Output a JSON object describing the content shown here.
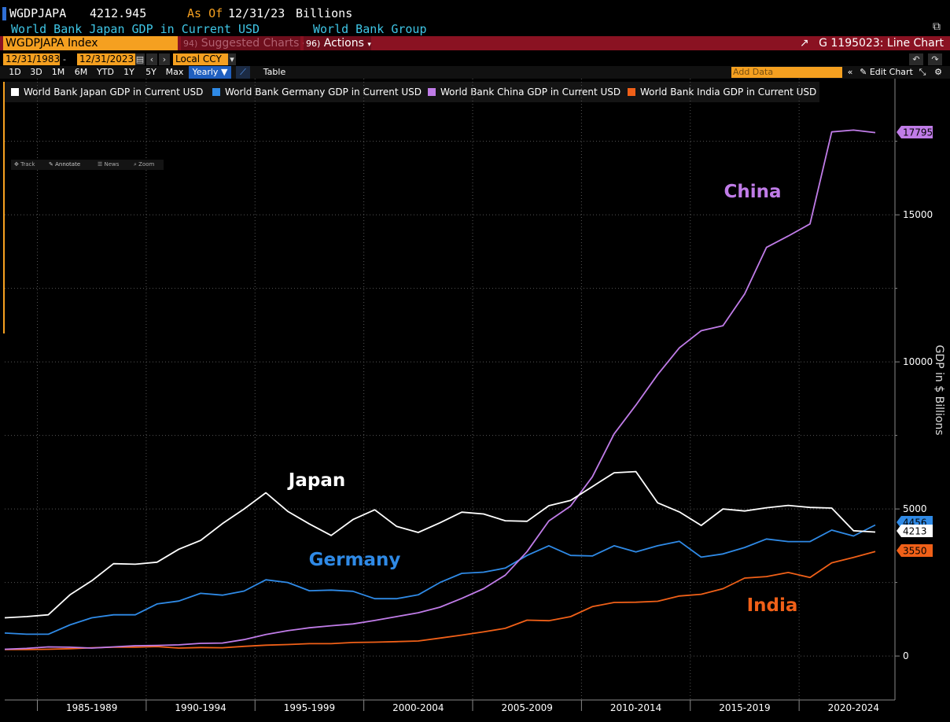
{
  "header": {
    "ticker": "WGDPJAPA",
    "last_value": "4212.945",
    "as_of_label": "As Of",
    "as_of_date": "12/31/23",
    "units": "Billions",
    "description": "World Bank Japan GDP in Current USD",
    "source": "World Bank Group"
  },
  "toolbar": {
    "security": "WGDPJAPA Index",
    "suggested": "Suggested Charts",
    "suggested_prefix": "94)",
    "actions": "Actions",
    "actions_prefix": "96)",
    "chart_id": "G 1195023: Line Chart"
  },
  "range": {
    "start": "12/31/1983",
    "end": "12/31/2023",
    "currency": "Local CCY"
  },
  "periods": [
    "1D",
    "3D",
    "1M",
    "6M",
    "YTD",
    "1Y",
    "5Y",
    "Max"
  ],
  "frequency": "Yearly",
  "table_label": "Table",
  "add_data_placeholder": "Add Data",
  "edit_chart": "Edit Chart",
  "chart_tools": [
    "Track",
    "Annotate",
    "News",
    "Zoom"
  ],
  "colors": {
    "japan": "#ffffff",
    "germany": "#2f8ae6",
    "china": "#c07ce8",
    "india": "#f06018",
    "accent": "#f5a020",
    "bar": "#8a1222"
  },
  "chart_data": {
    "type": "line",
    "ylabel": "GDP in $ Billions",
    "ylim": [
      -1000,
      18600
    ],
    "y_ticks": [
      0,
      5000,
      10000,
      15000
    ],
    "grid": true,
    "legend_position": "top-left",
    "x_tick_labels": [
      "1985-1989",
      "1990-1994",
      "1995-1999",
      "2000-2004",
      "2005-2009",
      "2010-2014",
      "2015-2019",
      "2020-2024"
    ],
    "x": [
      1983,
      1984,
      1985,
      1986,
      1987,
      1988,
      1989,
      1990,
      1991,
      1992,
      1993,
      1994,
      1995,
      1996,
      1997,
      1998,
      1999,
      2000,
      2001,
      2002,
      2003,
      2004,
      2005,
      2006,
      2007,
      2008,
      2009,
      2010,
      2011,
      2012,
      2013,
      2014,
      2015,
      2016,
      2017,
      2018,
      2019,
      2020,
      2021,
      2022,
      2023
    ],
    "series": [
      {
        "name": "World Bank Japan GDP in Current USD",
        "label": "Japan",
        "color": "#ffffff",
        "last_label": "4213",
        "values": [
          1300,
          1340,
          1400,
          2080,
          2560,
          3140,
          3120,
          3190,
          3630,
          3930,
          4500,
          5000,
          5550,
          4920,
          4490,
          4100,
          4640,
          4970,
          4410,
          4200,
          4530,
          4890,
          4830,
          4600,
          4580,
          5110,
          5290,
          5760,
          6230,
          6270,
          5210,
          4900,
          4440,
          5000,
          4930,
          5040,
          5120,
          5050,
          5030,
          4260,
          4213
        ]
      },
      {
        "name": "World Bank Germany GDP in Current USD",
        "label": "Germany",
        "color": "#2f8ae6",
        "last_label": "4456",
        "values": [
          780,
          740,
          740,
          1060,
          1300,
          1400,
          1400,
          1770,
          1870,
          2130,
          2070,
          2210,
          2590,
          2500,
          2220,
          2240,
          2200,
          1950,
          1950,
          2080,
          2500,
          2810,
          2850,
          2990,
          3420,
          3750,
          3420,
          3400,
          3750,
          3540,
          3750,
          3900,
          3360,
          3470,
          3690,
          3980,
          3890,
          3890,
          4280,
          4080,
          4456
        ]
      },
      {
        "name": "World Bank China GDP in Current USD",
        "label": "China",
        "color": "#c07ce8",
        "last_label": "17795",
        "values": [
          230,
          260,
          310,
          300,
          270,
          310,
          350,
          360,
          380,
          430,
          440,
          560,
          730,
          860,
          960,
          1030,
          1090,
          1210,
          1340,
          1470,
          1660,
          1960,
          2290,
          2750,
          3550,
          4590,
          5100,
          6090,
          7550,
          8530,
          9570,
          10480,
          11060,
          11230,
          12310,
          13890,
          14280,
          14690,
          17820,
          17880,
          17795
        ]
      },
      {
        "name": "World Bank India GDP in Current USD",
        "label": "India",
        "color": "#f06018",
        "last_label": "3550",
        "values": [
          220,
          220,
          230,
          250,
          280,
          300,
          300,
          320,
          270,
          290,
          280,
          330,
          370,
          390,
          420,
          420,
          460,
          470,
          490,
          510,
          610,
          710,
          820,
          940,
          1220,
          1200,
          1340,
          1680,
          1820,
          1830,
          1860,
          2040,
          2100,
          2290,
          2650,
          2700,
          2840,
          2670,
          3170,
          3350,
          3550
        ]
      }
    ]
  }
}
